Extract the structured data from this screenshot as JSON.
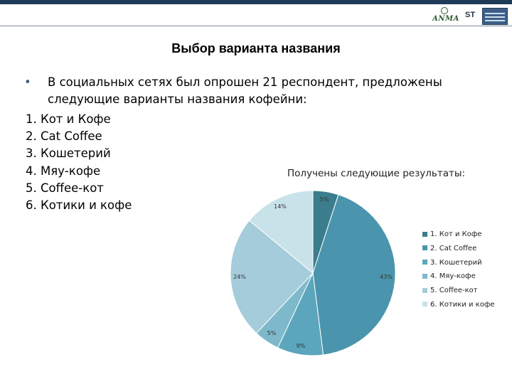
{
  "header": {
    "logo_left_text": "ANMA",
    "logo_middle_text": "ST"
  },
  "slide": {
    "title": "Выбор варианта названия",
    "bullet": "В социальных сетях был опрошен 21 респондент, предложены следующие варианты названия кофейни:",
    "options": [
      "1. Кот и Кофе",
      "2. Cat Coffee",
      "3. Кошетерий",
      "4. Мяу-кофе",
      "5. Coffee-кот",
      "6. Котики и кофе"
    ],
    "results_label": "Получены следующие результаты:"
  },
  "chart_data": {
    "type": "pie",
    "categories": [
      "1. Кот и Кофе",
      "2. Cat Coffee",
      "3. Кошетерий",
      "4. Мяу-кофе",
      "5. Coffee-кот",
      "6. Котики и кофе"
    ],
    "values": [
      5,
      43,
      9,
      5,
      24,
      14
    ],
    "value_labels": [
      "5%",
      "43%",
      "9%",
      "5%",
      "24%",
      "14%"
    ],
    "colors": [
      "#3b7d8c",
      "#4a95ad",
      "#5ba6bc",
      "#7eb9cb",
      "#a5ccdb",
      "#c8e2ea"
    ],
    "legend_position": "right",
    "start_angle_deg": 0,
    "direction": "clockwise"
  }
}
